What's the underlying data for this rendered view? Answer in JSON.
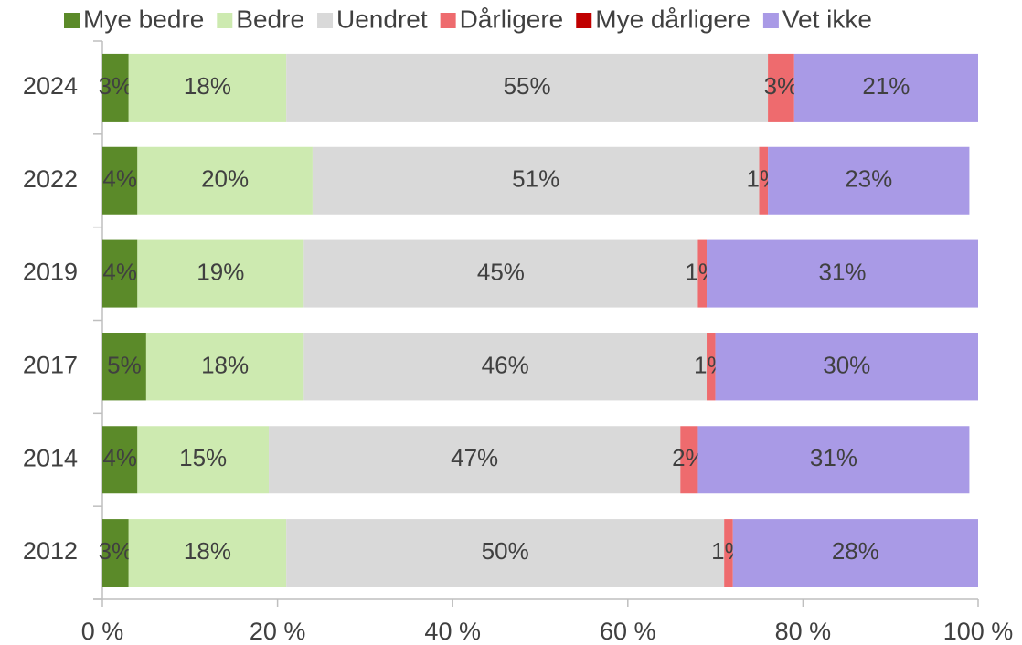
{
  "chart_data": {
    "type": "stacked-bar-horizontal",
    "categories": [
      "2024",
      "2022",
      "2019",
      "2017",
      "2014",
      "2012"
    ],
    "series": [
      {
        "name": "Mye bedre",
        "color": "#5b8a29",
        "values": [
          3,
          4,
          4,
          5,
          4,
          3
        ],
        "value_labels": [
          "3%",
          "4%",
          "4%",
          "5%",
          "4%",
          "3%"
        ]
      },
      {
        "name": "Bedre",
        "color": "#cdeab0",
        "values": [
          18,
          20,
          19,
          18,
          15,
          18
        ],
        "value_labels": [
          "18%",
          "20%",
          "19%",
          "18%",
          "15%",
          "18%"
        ]
      },
      {
        "name": "Uendret",
        "color": "#d9d9d9",
        "values": [
          55,
          51,
          45,
          46,
          47,
          50
        ],
        "value_labels": [
          "55%",
          "51%",
          "45%",
          "46%",
          "47%",
          "50%"
        ]
      },
      {
        "name": "Dårligere",
        "color": "#ee6b6e",
        "values": [
          3,
          1,
          1,
          1,
          2,
          1
        ],
        "value_labels": [
          "3%",
          "1%",
          "1%",
          "1%",
          "2%",
          "1%"
        ]
      },
      {
        "name": "Mye dårligere",
        "color": "#c00000",
        "values": [
          0,
          0,
          0,
          0,
          0,
          0
        ]
      },
      {
        "name": "Vet ikke",
        "color": "#a99ae6",
        "values": [
          21,
          23,
          31,
          30,
          31,
          28
        ],
        "value_labels": [
          "21%",
          "23%",
          "31%",
          "30%",
          "31%",
          "28%"
        ]
      }
    ],
    "xlim": [
      0,
      100
    ],
    "xticks": [
      {
        "value": 0,
        "label": "0 %"
      },
      {
        "value": 20,
        "label": "20 %"
      },
      {
        "value": 40,
        "label": "40 %"
      },
      {
        "value": 60,
        "label": "60 %"
      },
      {
        "value": 80,
        "label": "80 %"
      },
      {
        "value": 100,
        "label": "100 %"
      }
    ],
    "legend": "top"
  }
}
